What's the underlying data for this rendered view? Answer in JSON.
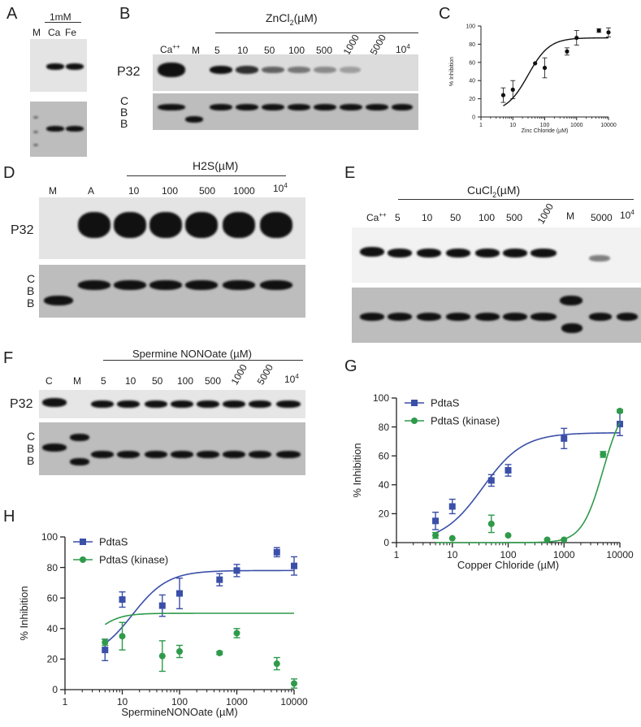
{
  "panels": {
    "A": {
      "letter": "A",
      "header": "1mM",
      "lanes": [
        "M",
        "Ca",
        "Fe"
      ]
    },
    "B": {
      "letter": "B",
      "title_main": "ZnCl",
      "title_sub": "2",
      "title_unit": "(µM)",
      "ca_label": "Ca",
      "ca_sup": "++",
      "m_label": "M",
      "lanes": [
        "5",
        "10",
        "50",
        "100",
        "500",
        "1000",
        "5000",
        "10"
      ],
      "last_sup": "4",
      "p32": "P32",
      "cbb": [
        "C",
        "B",
        "B"
      ]
    },
    "D": {
      "letter": "D",
      "title": "H2S(µM)",
      "lanes": [
        "M",
        "A",
        "10",
        "100",
        "500",
        "1000",
        "10"
      ],
      "last_sup": "4",
      "p32": "P32",
      "cbb": [
        "C",
        "B",
        "B"
      ]
    },
    "E": {
      "letter": "E",
      "title_main": "CuCl",
      "title_sub": "2",
      "title_unit": "(µM)",
      "ca_label": "Ca",
      "ca_sup": "++",
      "lanes": [
        "5",
        "10",
        "50",
        "100",
        "500",
        "1000",
        "M",
        "5000",
        "10"
      ],
      "last_sup": "4"
    },
    "F": {
      "letter": "F",
      "title": "Spermine NONOate (µM)",
      "lanes": [
        "C",
        "M",
        "5",
        "10",
        "50",
        "100",
        "500",
        "1000",
        "5000",
        "10"
      ],
      "last_sup": "4",
      "p32": "P32",
      "cbb": [
        "C",
        "B",
        "B"
      ]
    }
  },
  "chart_data": [
    {
      "panel": "C",
      "letter": "C",
      "type": "scatter",
      "xlabel": "Zinc Chloride (µM)",
      "ylabel": "% Inhibition",
      "xscale": "log",
      "xlim": [
        1,
        10000
      ],
      "ylim": [
        0,
        100
      ],
      "xticks": [
        "1",
        "10",
        "100",
        "1000",
        "10000"
      ],
      "yticks": [
        "0",
        "20",
        "40",
        "60",
        "80",
        "100"
      ],
      "series": [
        {
          "color": "#111111",
          "marker": "circle",
          "x": [
            5,
            10,
            50,
            100,
            500,
            1000,
            5000,
            10000
          ],
          "y": [
            24,
            30,
            59,
            54,
            72,
            87,
            95,
            93
          ],
          "err": [
            8,
            10,
            0,
            11,
            4,
            8,
            2,
            5
          ],
          "fit": {
            "bottom": 5,
            "top": 87,
            "ec50": 30,
            "hill": 1.3
          }
        }
      ]
    },
    {
      "panel": "G",
      "letter": "G",
      "type": "scatter",
      "xlabel": "Copper Chloride (µM)",
      "ylabel": "% Inhibition",
      "xscale": "log",
      "xlim": [
        1,
        10000
      ],
      "ylim": [
        0,
        100
      ],
      "xticks": [
        "1",
        "10",
        "100",
        "1000",
        "10000"
      ],
      "yticks": [
        "0",
        "20",
        "40",
        "60",
        "80",
        "100"
      ],
      "legend": "top-left",
      "series": [
        {
          "name": "PdtaS",
          "color": "#3a4fa8",
          "marker": "square",
          "x": [
            5,
            10,
            50,
            100,
            1000,
            10000
          ],
          "y": [
            15,
            25,
            43,
            50,
            72,
            82
          ],
          "err": [
            6,
            5,
            4,
            4,
            7,
            8
          ],
          "fit": {
            "bottom": 0,
            "top": 76,
            "ec50": 35,
            "hill": 1.2
          }
        },
        {
          "name": "PdtaS (kinase)",
          "color": "#2e9a4a",
          "marker": "circle",
          "x": [
            5,
            10,
            50,
            100,
            500,
            1000,
            5000,
            10000
          ],
          "y": [
            5,
            3,
            13,
            5,
            2,
            2,
            61,
            91
          ],
          "err": [
            2,
            0,
            6,
            0,
            0,
            0,
            2,
            1
          ],
          "fit": {
            "bottom": 0,
            "top": 100,
            "ec50": 5000,
            "hill": 2.3
          }
        }
      ]
    },
    {
      "panel": "H",
      "letter": "H",
      "type": "scatter",
      "xlabel": "SpermineNONOate (µM)",
      "ylabel": "% Inhibition",
      "xscale": "log",
      "xlim": [
        1,
        10000
      ],
      "ylim": [
        0,
        100
      ],
      "xticks": [
        "1",
        "10",
        "100",
        "1000",
        "10000"
      ],
      "yticks": [
        "0",
        "20",
        "40",
        "60",
        "80",
        "100"
      ],
      "legend": "top-left",
      "series": [
        {
          "name": "PdtaS",
          "color": "#3a4fa8",
          "marker": "square",
          "x": [
            5,
            10,
            50,
            100,
            500,
            1000,
            5000,
            10000
          ],
          "y": [
            26,
            59,
            55,
            63,
            72,
            78,
            90,
            81
          ],
          "err": [
            7,
            5,
            7,
            10,
            4,
            4,
            3,
            6
          ],
          "fit": {
            "bottom": 20,
            "top": 78,
            "ec50": 15,
            "hill": 1.4
          }
        },
        {
          "name": "PdtaS (kinase)",
          "color": "#2e9a4a",
          "marker": "circle",
          "x": [
            5,
            10,
            50,
            100,
            500,
            1000,
            5000,
            10000
          ],
          "y": [
            31,
            35,
            22,
            25,
            24,
            37,
            17,
            4
          ],
          "err": [
            2,
            9,
            10,
            4,
            1,
            3,
            4,
            3
          ],
          "fit": {
            "bottom": 22,
            "top": 50,
            "ec50": 3,
            "hill": 2.0
          }
        }
      ]
    }
  ]
}
